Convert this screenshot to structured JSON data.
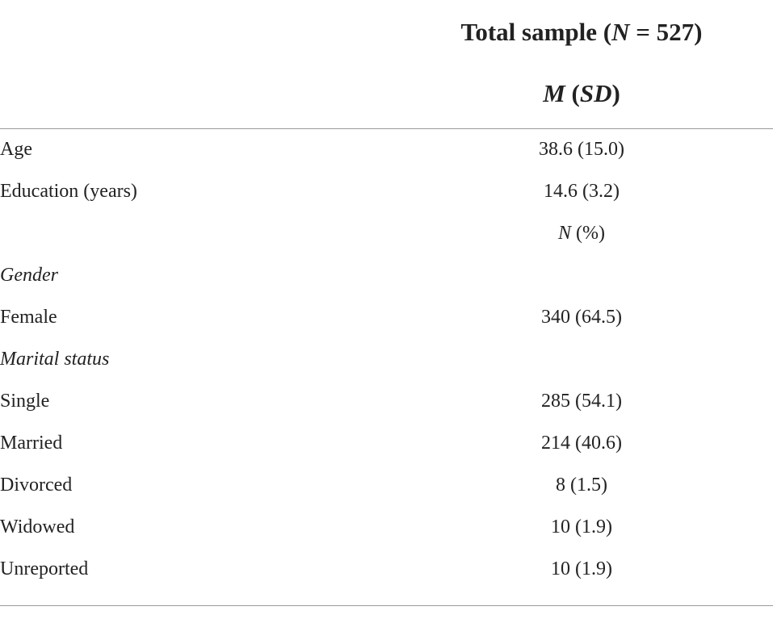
{
  "table": {
    "header": {
      "title": [
        "Total sample (",
        {
          "italic": "N"
        },
        " = 527)"
      ],
      "subtitle": [
        {
          "italic": "M"
        },
        " (",
        {
          "italic": "SD"
        },
        ")"
      ]
    },
    "rows": [
      {
        "label": "Age",
        "value": "38.6 (15.0)"
      },
      {
        "label": "Education (years)",
        "value": "14.6 (3.2)"
      },
      {
        "value": [
          {
            "italic": "N"
          },
          " (%)"
        ]
      },
      {
        "section": "Gender"
      },
      {
        "label": "Female",
        "value": "340 (64.5)"
      },
      {
        "section": "Marital status"
      },
      {
        "label": "Single",
        "value": "285 (54.1)"
      },
      {
        "label": "Married",
        "value": "214 (40.6)"
      },
      {
        "label": "Divorced",
        "value": "8 (1.5)"
      },
      {
        "label": "Widowed",
        "value": "10 (1.9)"
      },
      {
        "label": "Unreported",
        "value": "10 (1.9)"
      }
    ]
  }
}
